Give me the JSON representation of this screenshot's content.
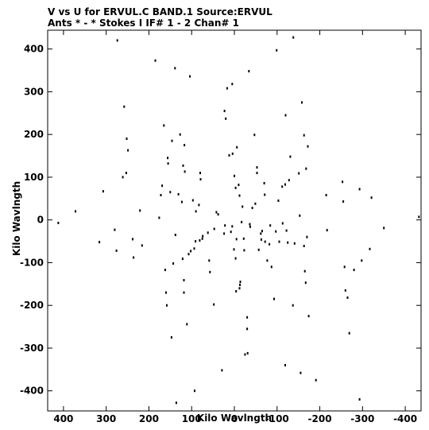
{
  "title_line1": "V vs U for ERVUL.C BAND.1   Source:ERVUL",
  "title_line2": "Ants * - *     Stokes I  IF# 1 - 2  Chan# 1",
  "chart_data": {
    "type": "scatter",
    "title": "V vs U for ERVUL.C BAND.1   Source:ERVUL",
    "subtitle": "Ants * - *     Stokes I  IF# 1 - 2  Chan# 1",
    "xlabel": "Kilo Wavlngth",
    "ylabel": "Kilo Wavlngth",
    "xlim": [
      437,
      -437
    ],
    "ylim": [
      -447,
      444
    ],
    "x_ticks": [
      400,
      300,
      200,
      100,
      0,
      -100,
      -200,
      -300,
      -400
    ],
    "y_ticks": [
      400,
      300,
      200,
      100,
      0,
      -100,
      -200,
      -300,
      -400
    ],
    "x_tick_labels": [
      "400",
      "300",
      "200",
      "100",
      "0",
      "-100",
      "-200",
      "-300",
      "-400"
    ],
    "y_tick_labels": [
      "400",
      "300",
      "200",
      "100",
      "0",
      "-100",
      "-200",
      "-300",
      "-400"
    ],
    "grid": false,
    "legend": "none",
    "series": [
      {
        "points": [
          [
            412,
            -7
          ],
          [
            372,
            20
          ],
          [
            316,
            -52
          ],
          [
            307,
            67
          ],
          [
            280,
            -23
          ],
          [
            276,
            -72
          ],
          [
            274,
            420
          ],
          [
            261,
            100
          ],
          [
            258,
            265
          ],
          [
            253,
            110
          ],
          [
            252,
            190
          ],
          [
            249,
            163
          ],
          [
            238,
            -45
          ],
          [
            236,
            -88
          ],
          [
            221,
            22
          ],
          [
            216,
            -60
          ],
          [
            185,
            373
          ],
          [
            176,
            5
          ],
          [
            172,
            58
          ],
          [
            169,
            80
          ],
          [
            165,
            221
          ],
          [
            162,
            -117
          ],
          [
            160,
            -170
          ],
          [
            158,
            -200
          ],
          [
            156,
            145
          ],
          [
            155,
            132
          ],
          [
            150,
            65
          ],
          [
            147,
            -275
          ],
          [
            146,
            185
          ],
          [
            143,
            -102
          ],
          [
            138,
            -35
          ],
          [
            139,
            355
          ],
          [
            136,
            -428
          ],
          [
            131,
            60
          ],
          [
            127,
            200
          ],
          [
            123,
            42
          ],
          [
            121,
            -91
          ],
          [
            118,
            -141
          ],
          [
            120,
            127
          ],
          [
            118,
            -170
          ],
          [
            117,
            175
          ],
          [
            116,
            113
          ],
          [
            111,
            -244
          ],
          [
            107,
            -80
          ],
          [
            102,
            -73
          ],
          [
            104,
            336
          ],
          [
            97,
            46
          ],
          [
            93,
            -400
          ],
          [
            94,
            -67
          ],
          [
            91,
            -50
          ],
          [
            90,
            20
          ],
          [
            83,
            35
          ],
          [
            81,
            -48
          ],
          [
            80,
            110
          ],
          [
            79,
            95
          ],
          [
            75,
            -44
          ],
          [
            74,
            -38
          ],
          [
            62,
            -30
          ],
          [
            59,
            -95
          ],
          [
            57,
            -122
          ],
          [
            48,
            -198
          ],
          [
            47,
            -21
          ],
          [
            42,
            18
          ],
          [
            38,
            13
          ],
          [
            29,
            -352
          ],
          [
            24,
            -32
          ],
          [
            22,
            -13
          ],
          [
            23,
            255
          ],
          [
            20,
            237
          ],
          [
            17,
            308
          ],
          [
            12,
            151
          ],
          [
            8,
            -28
          ],
          [
            5,
            -15
          ],
          [
            5,
            318
          ],
          [
            4,
            155
          ],
          [
            0,
            103
          ],
          [
            1,
            -69
          ],
          [
            -3,
            75
          ],
          [
            -3,
            -90
          ],
          [
            -5,
            -45
          ],
          [
            -4,
            -167
          ],
          [
            -6,
            170
          ],
          [
            -10,
            82
          ],
          [
            -12,
            57
          ],
          [
            -12,
            -160
          ],
          [
            -13,
            -152
          ],
          [
            -14,
            -145
          ],
          [
            -17,
            -5
          ],
          [
            -19,
            31
          ],
          [
            -22,
            -44
          ],
          [
            -23,
            -71
          ],
          [
            -25,
            -315
          ],
          [
            -30,
            -228
          ],
          [
            -30,
            -255
          ],
          [
            -31,
            -312
          ],
          [
            -34,
            348
          ],
          [
            -36,
            -10
          ],
          [
            -37,
            -16
          ],
          [
            -42,
            28
          ],
          [
            -47,
            199
          ],
          [
            -49,
            38
          ],
          [
            -53,
            110
          ],
          [
            -53,
            123
          ],
          [
            -57,
            -70
          ],
          [
            -62,
            -32
          ],
          [
            -63,
            -46
          ],
          [
            -65,
            -26
          ],
          [
            -70,
            86
          ],
          [
            -71,
            59
          ],
          [
            -72,
            -51
          ],
          [
            -77,
            -95
          ],
          [
            -82,
            -57
          ],
          [
            -84,
            -13
          ],
          [
            -87,
            -110
          ],
          [
            -93,
            -185
          ],
          [
            -97,
            -27
          ],
          [
            -99,
            397
          ],
          [
            -103,
            45
          ],
          [
            -105,
            -51
          ],
          [
            -112,
            78
          ],
          [
            -113,
            -8
          ],
          [
            -119,
            83
          ],
          [
            -119,
            -340
          ],
          [
            -120,
            245
          ],
          [
            -122,
            -25
          ],
          [
            -125,
            -53
          ],
          [
            -128,
            93
          ],
          [
            -131,
            148
          ],
          [
            -137,
            -200
          ],
          [
            -138,
            427
          ],
          [
            -141,
            -55
          ],
          [
            -151,
            109
          ],
          [
            -153,
            10
          ],
          [
            -155,
            -358
          ],
          [
            -158,
            275
          ],
          [
            -163,
            198
          ],
          [
            -163,
            -61
          ],
          [
            -165,
            -120
          ],
          [
            -167,
            -147
          ],
          [
            -168,
            120
          ],
          [
            -170,
            -40
          ],
          [
            -172,
            172
          ],
          [
            -174,
            -225
          ],
          [
            -191,
            -375
          ],
          [
            -215,
            58
          ],
          [
            -217,
            -24
          ],
          [
            -255,
            43
          ],
          [
            -253,
            89
          ],
          [
            -258,
            -110
          ],
          [
            -260,
            -165
          ],
          [
            -265,
            -182
          ],
          [
            -269,
            -265
          ],
          [
            -280,
            -117
          ],
          [
            -293,
            72
          ],
          [
            -293,
            -420
          ],
          [
            -298,
            -95
          ],
          [
            -317,
            -68
          ],
          [
            -321,
            52
          ],
          [
            -350,
            -19
          ],
          [
            -432,
            7
          ]
        ]
      }
    ]
  }
}
